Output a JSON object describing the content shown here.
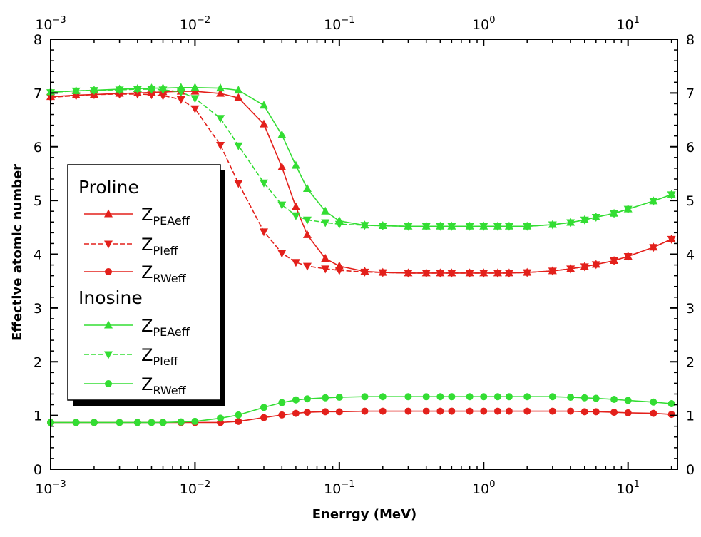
{
  "chart_data": {
    "type": "line",
    "title": "",
    "xlabel": "Enerrgy (MeV)",
    "ylabel": "Effective atomic number",
    "xscale": "log",
    "xlim": [
      0.001,
      22
    ],
    "ylim": [
      0,
      8
    ],
    "x_ticks": [
      {
        "value": 0.001,
        "base": "10",
        "exp": "−3"
      },
      {
        "value": 0.01,
        "base": "10",
        "exp": "−2"
      },
      {
        "value": 0.1,
        "base": "10",
        "exp": "−1"
      },
      {
        "value": 1,
        "base": "10",
        "exp": "0",
        "plain": "10⁰",
        "label": "10"
      },
      {
        "value": 10,
        "base": "10",
        "exp": "1"
      }
    ],
    "x_tick_plain_label": "10",
    "one_label": "10",
    "y_ticks": [
      "0",
      "1",
      "2",
      "3",
      "4",
      "5",
      "6",
      "7",
      "8"
    ],
    "grid": false,
    "legend_position": "middle-left",
    "x": [
      0.001,
      0.0015,
      0.002,
      0.003,
      0.004,
      0.005,
      0.006,
      0.008,
      0.01,
      0.015,
      0.02,
      0.03,
      0.04,
      0.05,
      0.06,
      0.08,
      0.1,
      0.15,
      0.2,
      0.3,
      0.4,
      0.5,
      0.6,
      0.8,
      1,
      1.25,
      1.5,
      2,
      3,
      4,
      5,
      6,
      8,
      10,
      15,
      20
    ],
    "legend_groups": [
      {
        "title": "Proline",
        "entries": [
          0,
          1,
          2
        ]
      },
      {
        "title": "Inosine",
        "entries": [
          3,
          4,
          5
        ]
      }
    ],
    "series": [
      {
        "name": "PEAeff",
        "label_main": "Z",
        "label_sub": "PEAeff",
        "group": "Proline",
        "color": "#e3201b",
        "marker": "triangle-up",
        "dash": "solid",
        "values": [
          6.93,
          6.96,
          6.97,
          6.99,
          7.0,
          7.01,
          7.02,
          7.03,
          7.03,
          6.99,
          6.91,
          6.42,
          5.62,
          4.88,
          4.36,
          3.92,
          3.78,
          3.68,
          3.66,
          3.65,
          3.65,
          3.65,
          3.65,
          3.65,
          3.65,
          3.65,
          3.65,
          3.66,
          3.69,
          3.73,
          3.77,
          3.81,
          3.88,
          3.96,
          4.13,
          4.28
        ]
      },
      {
        "name": "PIeff",
        "label_main": "Z",
        "label_sub": "PIeff",
        "group": "Proline",
        "color": "#e3201b",
        "marker": "triangle-down",
        "dash": "dash",
        "values": [
          6.92,
          6.95,
          6.97,
          6.98,
          6.98,
          6.97,
          6.95,
          6.88,
          6.71,
          6.03,
          5.32,
          4.42,
          4.02,
          3.85,
          3.78,
          3.73,
          3.7,
          3.67,
          3.66,
          3.65,
          3.65,
          3.65,
          3.65,
          3.65,
          3.65,
          3.65,
          3.65,
          3.66,
          3.69,
          3.73,
          3.77,
          3.81,
          3.88,
          3.96,
          4.13,
          4.28
        ]
      },
      {
        "name": "RWeff",
        "label_main": "Z",
        "label_sub": "RWeff",
        "group": "Proline",
        "color": "#e3201b",
        "marker": "circle",
        "dash": "solid",
        "values": [
          0.87,
          0.87,
          0.87,
          0.87,
          0.87,
          0.87,
          0.87,
          0.87,
          0.87,
          0.87,
          0.89,
          0.96,
          1.01,
          1.04,
          1.06,
          1.07,
          1.07,
          1.08,
          1.08,
          1.08,
          1.08,
          1.08,
          1.08,
          1.08,
          1.08,
          1.08,
          1.08,
          1.08,
          1.08,
          1.08,
          1.07,
          1.07,
          1.06,
          1.05,
          1.04,
          1.02
        ]
      },
      {
        "name": "PEAeff",
        "label_main": "Z",
        "label_sub": "PEAeff",
        "group": "Inosine",
        "color": "#33dd33",
        "marker": "triangle-up",
        "dash": "solid",
        "values": [
          7.02,
          7.04,
          7.05,
          7.07,
          7.08,
          7.09,
          7.09,
          7.1,
          7.1,
          7.09,
          7.05,
          6.77,
          6.22,
          5.65,
          5.22,
          4.8,
          4.62,
          4.54,
          4.53,
          4.52,
          4.52,
          4.52,
          4.52,
          4.52,
          4.52,
          4.52,
          4.52,
          4.52,
          4.55,
          4.59,
          4.64,
          4.69,
          4.76,
          4.84,
          4.99,
          5.11
        ]
      },
      {
        "name": "PIeff",
        "label_main": "Z",
        "label_sub": "PIeff",
        "group": "Inosine",
        "color": "#33dd33",
        "marker": "triangle-down",
        "dash": "dash",
        "values": [
          7.01,
          7.04,
          7.05,
          7.06,
          7.07,
          7.07,
          7.06,
          7.02,
          6.9,
          6.53,
          6.02,
          5.33,
          4.92,
          4.72,
          4.64,
          4.59,
          4.56,
          4.54,
          4.53,
          4.52,
          4.52,
          4.52,
          4.52,
          4.52,
          4.52,
          4.52,
          4.52,
          4.52,
          4.55,
          4.59,
          4.64,
          4.69,
          4.76,
          4.84,
          4.99,
          5.11
        ]
      },
      {
        "name": "RWeff",
        "label_main": "Z",
        "label_sub": "RWeff",
        "group": "Inosine",
        "color": "#33dd33",
        "marker": "circle",
        "dash": "solid",
        "values": [
          0.87,
          0.87,
          0.87,
          0.87,
          0.87,
          0.87,
          0.87,
          0.88,
          0.89,
          0.95,
          1.01,
          1.15,
          1.24,
          1.29,
          1.31,
          1.33,
          1.34,
          1.35,
          1.35,
          1.35,
          1.35,
          1.35,
          1.35,
          1.35,
          1.35,
          1.35,
          1.35,
          1.35,
          1.35,
          1.34,
          1.33,
          1.32,
          1.3,
          1.28,
          1.25,
          1.22
        ]
      }
    ]
  }
}
